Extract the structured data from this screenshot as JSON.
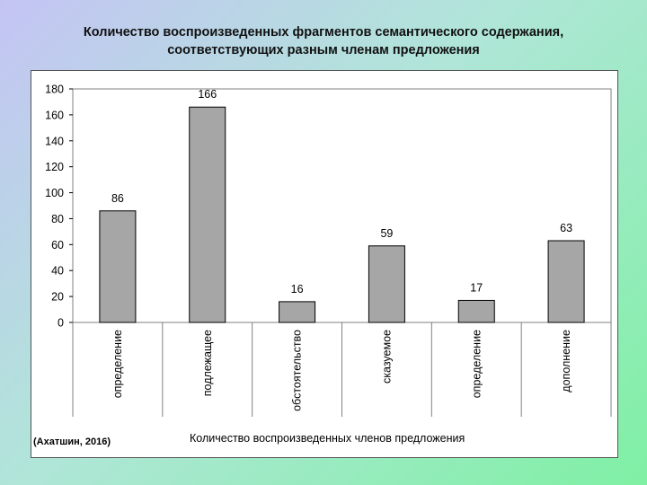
{
  "slide": {
    "title_line1": "Количество воспроизведенных фрагментов семантического содержания,",
    "title_line2": "соответствующих разным членам предложения"
  },
  "citation": "(Ахатшин, 2016)",
  "chart_data": {
    "type": "bar",
    "title": "",
    "xlabel": "Количество воспроизведенных членов предложения",
    "ylabel": "",
    "categories": [
      "определение",
      "подлежащее",
      "обстоятельство",
      "сказуемое",
      "определение",
      "дополнение"
    ],
    "values": [
      86,
      166,
      16,
      59,
      17,
      63
    ],
    "ylim": [
      0,
      180
    ],
    "yticks": [
      0,
      20,
      40,
      60,
      80,
      100,
      120,
      140,
      160,
      180
    ],
    "grid": false,
    "legend": "none",
    "bar_color": "#a6a6a6",
    "data_labels": true
  }
}
